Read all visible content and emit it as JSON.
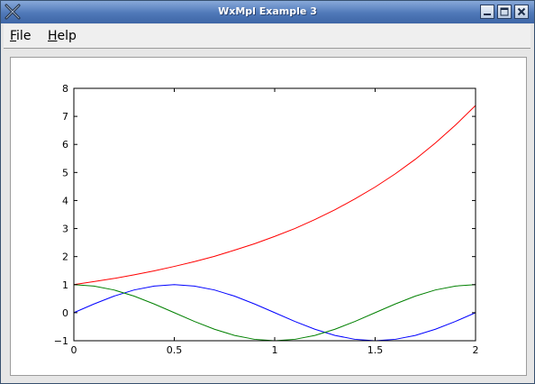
{
  "window": {
    "title": "WxMpl Example 3"
  },
  "menu": {
    "items": [
      {
        "label": "File",
        "mnemonic": "F",
        "rest": "ile"
      },
      {
        "label": "Help",
        "mnemonic": "H",
        "rest": "elp"
      }
    ]
  },
  "colors": {
    "exp": "#ff0000",
    "sin": "#0000ff",
    "cos": "#008000"
  },
  "chart_data": {
    "type": "line",
    "xlim": [
      0,
      2
    ],
    "ylim": [
      -1,
      8
    ],
    "xticks": [
      "0",
      "0.5",
      "1",
      "1.5",
      "2"
    ],
    "yticks": [
      "−1",
      "0",
      "1",
      "2",
      "3",
      "4",
      "5",
      "6",
      "7",
      "8"
    ],
    "grid": false,
    "x": [
      0,
      0.1,
      0.2,
      0.3,
      0.4,
      0.5,
      0.6,
      0.7,
      0.8,
      0.9,
      1.0,
      1.1,
      1.2,
      1.3,
      1.4,
      1.5,
      1.6,
      1.7,
      1.8,
      1.9,
      2.0
    ],
    "series": [
      {
        "color": "#ff0000",
        "values": [
          1.0,
          1.11,
          1.22,
          1.35,
          1.49,
          1.65,
          1.82,
          2.01,
          2.23,
          2.46,
          2.72,
          3.0,
          3.32,
          3.67,
          4.06,
          4.48,
          4.95,
          5.47,
          6.05,
          6.69,
          7.39
        ]
      },
      {
        "color": "#0000ff",
        "values": [
          0.0,
          0.31,
          0.59,
          0.81,
          0.95,
          1.0,
          0.95,
          0.81,
          0.59,
          0.31,
          0.0,
          -0.31,
          -0.59,
          -0.81,
          -0.95,
          -1.0,
          -0.95,
          -0.81,
          -0.59,
          -0.31,
          0.0
        ]
      },
      {
        "color": "#008000",
        "values": [
          1.0,
          0.95,
          0.81,
          0.59,
          0.31,
          0.0,
          -0.31,
          -0.59,
          -0.81,
          -0.95,
          -1.0,
          -0.95,
          -0.81,
          -0.59,
          -0.31,
          0.0,
          0.31,
          0.59,
          0.81,
          0.95,
          1.0
        ]
      }
    ]
  }
}
